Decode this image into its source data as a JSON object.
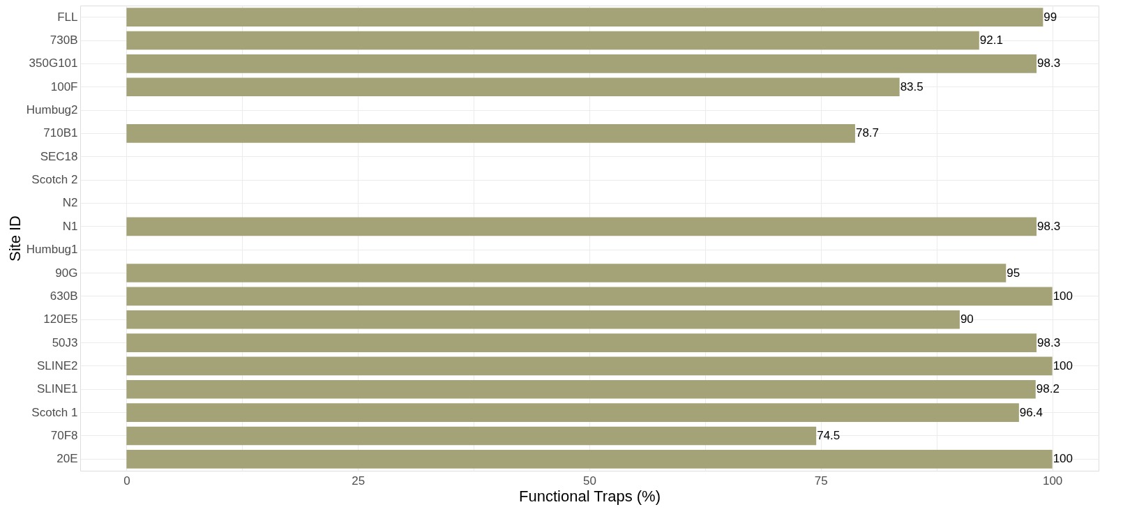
{
  "chart_data": {
    "type": "bar",
    "orientation": "horizontal",
    "xlabel": "Functional Traps (%)",
    "ylabel": "Site ID",
    "categories": [
      "FLL",
      "730B",
      "350G101",
      "100F",
      "Humbug2",
      "710B1",
      "SEC18",
      "Scotch 2",
      "N2",
      "N1",
      "Humbug1",
      "90G",
      "630B",
      "120E5",
      "50J3",
      "SLINE2",
      "SLINE1",
      "Scotch 1",
      "70F8",
      "20E"
    ],
    "values": [
      99,
      92.1,
      98.3,
      83.5,
      null,
      78.7,
      null,
      null,
      null,
      98.3,
      null,
      95,
      100,
      90,
      98.3,
      100,
      98.2,
      96.4,
      74.5,
      100
    ],
    "color": "#a3a377",
    "data_labels": true,
    "xlim": [
      -5,
      105
    ],
    "xticks": [
      0,
      {
        "value": 12.5,
        "label": null
      },
      25,
      {
        "value": 37.5,
        "label": null
      },
      50,
      {
        "value": 62.5,
        "label": null
      },
      75,
      {
        "value": 87.5,
        "label": null
      },
      100
    ],
    "grid": true
  }
}
